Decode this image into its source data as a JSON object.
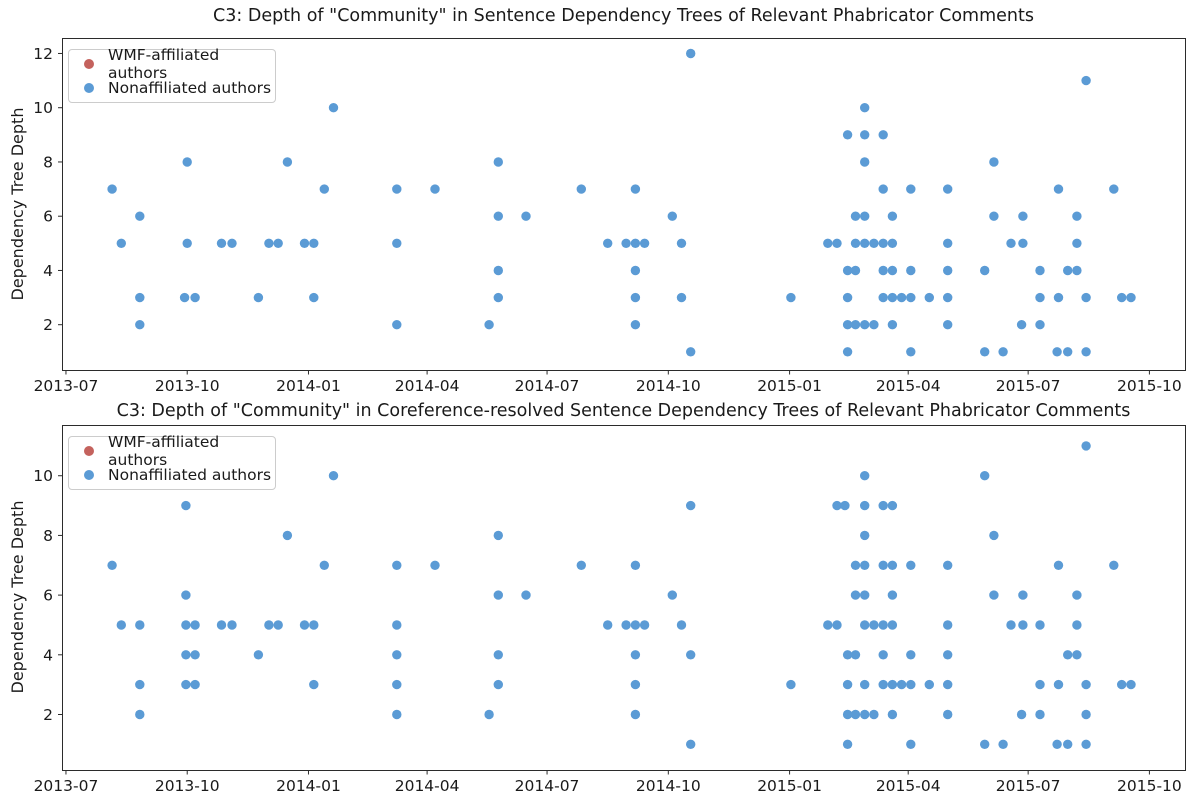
{
  "figure": {
    "background": "#ffffff",
    "text_color": "#1a1a1a",
    "spine_color": "#2b2b2b"
  },
  "legend": {
    "items": [
      {
        "label": "WMF-affiliated authors",
        "color": "#c4625d"
      },
      {
        "label": "Nonaffiliated authors",
        "color": "#5b9bd5"
      }
    ]
  },
  "x_axis": {
    "min_date": "2013-06-28",
    "max_date": "2015-10-28",
    "ticks": [
      {
        "date": "2013-07-01",
        "label": "2013-07"
      },
      {
        "date": "2013-10-01",
        "label": "2013-10"
      },
      {
        "date": "2014-01-01",
        "label": "2014-01"
      },
      {
        "date": "2014-04-01",
        "label": "2014-04"
      },
      {
        "date": "2014-07-01",
        "label": "2014-07"
      },
      {
        "date": "2014-10-01",
        "label": "2014-10"
      },
      {
        "date": "2015-01-01",
        "label": "2015-01"
      },
      {
        "date": "2015-04-01",
        "label": "2015-04"
      },
      {
        "date": "2015-07-01",
        "label": "2015-07"
      },
      {
        "date": "2015-10-01",
        "label": "2015-10"
      }
    ]
  },
  "chart_data": [
    {
      "type": "scatter",
      "title": "C3: Depth of \"Community\" in Sentence Dependency Trees of Relevant Phabricator Comments",
      "xlabel": "",
      "ylabel": "Dependency Tree Depth",
      "ylim": [
        0.33,
        12.57
      ],
      "y_ticks": [
        2,
        4,
        6,
        8,
        10,
        12
      ],
      "grid": false,
      "legend_position": "upper left",
      "series": [
        {
          "name": "WMF-affiliated authors",
          "color": "#c4625d",
          "points": []
        },
        {
          "name": "Nonaffiliated authors",
          "color": "#5b9bd5",
          "points": [
            [
              "2013-08-05",
              7
            ],
            [
              "2013-08-12",
              5
            ],
            [
              "2013-08-26",
              6
            ],
            [
              "2013-08-26",
              3
            ],
            [
              "2013-08-26",
              2
            ],
            [
              "2013-09-29",
              3
            ],
            [
              "2013-10-01",
              8
            ],
            [
              "2013-10-01",
              5
            ],
            [
              "2013-10-07",
              3
            ],
            [
              "2013-10-27",
              5
            ],
            [
              "2013-11-04",
              5
            ],
            [
              "2013-11-24",
              3
            ],
            [
              "2013-12-02",
              5
            ],
            [
              "2013-12-09",
              5
            ],
            [
              "2013-12-16",
              8
            ],
            [
              "2013-12-29",
              5
            ],
            [
              "2014-01-05",
              5
            ],
            [
              "2014-01-05",
              3
            ],
            [
              "2014-01-13",
              7
            ],
            [
              "2014-01-20",
              10
            ],
            [
              "2014-03-09",
              7
            ],
            [
              "2014-03-09",
              5
            ],
            [
              "2014-03-09",
              2
            ],
            [
              "2014-04-07",
              7
            ],
            [
              "2014-05-18",
              2
            ],
            [
              "2014-05-25",
              8
            ],
            [
              "2014-05-25",
              6
            ],
            [
              "2014-05-25",
              4
            ],
            [
              "2014-05-25",
              3
            ],
            [
              "2014-06-15",
              6
            ],
            [
              "2014-07-27",
              7
            ],
            [
              "2014-08-16",
              5
            ],
            [
              "2014-08-30",
              5
            ],
            [
              "2014-09-06",
              7
            ],
            [
              "2014-09-06",
              5
            ],
            [
              "2014-09-06",
              4
            ],
            [
              "2014-09-06",
              3
            ],
            [
              "2014-09-06",
              2
            ],
            [
              "2014-09-13",
              5
            ],
            [
              "2014-10-04",
              6
            ],
            [
              "2014-10-11",
              5
            ],
            [
              "2014-10-11",
              3
            ],
            [
              "2014-10-18",
              12
            ],
            [
              "2014-10-18",
              1
            ],
            [
              "2015-01-02",
              3
            ],
            [
              "2015-01-30",
              5
            ],
            [
              "2015-02-06",
              5
            ],
            [
              "2015-02-14",
              9
            ],
            [
              "2015-02-14",
              4
            ],
            [
              "2015-02-14",
              3
            ],
            [
              "2015-02-14",
              2
            ],
            [
              "2015-02-14",
              1
            ],
            [
              "2015-02-20",
              6
            ],
            [
              "2015-02-20",
              5
            ],
            [
              "2015-02-20",
              4
            ],
            [
              "2015-02-20",
              2
            ],
            [
              "2015-02-27",
              10
            ],
            [
              "2015-02-27",
              9
            ],
            [
              "2015-02-27",
              8
            ],
            [
              "2015-02-27",
              6
            ],
            [
              "2015-02-27",
              5
            ],
            [
              "2015-02-27",
              2
            ],
            [
              "2015-03-06",
              5
            ],
            [
              "2015-03-06",
              2
            ],
            [
              "2015-03-13",
              9
            ],
            [
              "2015-03-13",
              7
            ],
            [
              "2015-03-13",
              5
            ],
            [
              "2015-03-13",
              4
            ],
            [
              "2015-03-13",
              3
            ],
            [
              "2015-03-20",
              6
            ],
            [
              "2015-03-20",
              5
            ],
            [
              "2015-03-20",
              4
            ],
            [
              "2015-03-20",
              3
            ],
            [
              "2015-03-20",
              2
            ],
            [
              "2015-03-27",
              3
            ],
            [
              "2015-04-03",
              7
            ],
            [
              "2015-04-03",
              4
            ],
            [
              "2015-04-03",
              3
            ],
            [
              "2015-04-03",
              1
            ],
            [
              "2015-04-17",
              3
            ],
            [
              "2015-05-01",
              7
            ],
            [
              "2015-05-01",
              5
            ],
            [
              "2015-05-01",
              4
            ],
            [
              "2015-05-01",
              3
            ],
            [
              "2015-05-01",
              2
            ],
            [
              "2015-05-29",
              4
            ],
            [
              "2015-05-29",
              1
            ],
            [
              "2015-06-05",
              8
            ],
            [
              "2015-06-05",
              6
            ],
            [
              "2015-06-12",
              1
            ],
            [
              "2015-06-18",
              5
            ],
            [
              "2015-06-26",
              2
            ],
            [
              "2015-06-27",
              6
            ],
            [
              "2015-06-27",
              5
            ],
            [
              "2015-07-10",
              4
            ],
            [
              "2015-07-10",
              3
            ],
            [
              "2015-07-10",
              2
            ],
            [
              "2015-07-23",
              1
            ],
            [
              "2015-07-24",
              7
            ],
            [
              "2015-07-24",
              3
            ],
            [
              "2015-07-31",
              4
            ],
            [
              "2015-07-31",
              1
            ],
            [
              "2015-08-07",
              6
            ],
            [
              "2015-08-07",
              5
            ],
            [
              "2015-08-07",
              4
            ],
            [
              "2015-08-14",
              11
            ],
            [
              "2015-08-14",
              3
            ],
            [
              "2015-08-14",
              1
            ],
            [
              "2015-09-04",
              7
            ],
            [
              "2015-09-10",
              3
            ],
            [
              "2015-09-17",
              3
            ]
          ]
        }
      ]
    },
    {
      "type": "scatter",
      "title": "C3: Depth of \"Community\" in Coreference-resolved Sentence Dependency Trees of Relevant Phabricator Comments",
      "xlabel": "",
      "ylabel": "Dependency Tree Depth",
      "ylim": [
        0.14,
        11.7
      ],
      "y_ticks": [
        2,
        4,
        6,
        8,
        10
      ],
      "grid": false,
      "legend_position": "upper left",
      "series": [
        {
          "name": "WMF-affiliated authors",
          "color": "#c4625d",
          "points": []
        },
        {
          "name": "Nonaffiliated authors",
          "color": "#5b9bd5",
          "points": [
            [
              "2013-08-05",
              7
            ],
            [
              "2013-08-12",
              5
            ],
            [
              "2013-08-26",
              5
            ],
            [
              "2013-08-26",
              3
            ],
            [
              "2013-08-26",
              2
            ],
            [
              "2013-09-30",
              9
            ],
            [
              "2013-09-30",
              6
            ],
            [
              "2013-09-30",
              5
            ],
            [
              "2013-09-30",
              4
            ],
            [
              "2013-09-30",
              3
            ],
            [
              "2013-10-07",
              5
            ],
            [
              "2013-10-07",
              4
            ],
            [
              "2013-10-07",
              3
            ],
            [
              "2013-10-27",
              5
            ],
            [
              "2013-11-04",
              5
            ],
            [
              "2013-11-24",
              4
            ],
            [
              "2013-12-02",
              5
            ],
            [
              "2013-12-09",
              5
            ],
            [
              "2013-12-16",
              8
            ],
            [
              "2013-12-29",
              5
            ],
            [
              "2014-01-05",
              5
            ],
            [
              "2014-01-05",
              3
            ],
            [
              "2014-01-13",
              7
            ],
            [
              "2014-01-20",
              10
            ],
            [
              "2014-03-09",
              7
            ],
            [
              "2014-03-09",
              5
            ],
            [
              "2014-03-09",
              4
            ],
            [
              "2014-03-09",
              3
            ],
            [
              "2014-03-09",
              2
            ],
            [
              "2014-04-07",
              7
            ],
            [
              "2014-05-18",
              2
            ],
            [
              "2014-05-25",
              8
            ],
            [
              "2014-05-25",
              6
            ],
            [
              "2014-05-25",
              4
            ],
            [
              "2014-05-25",
              3
            ],
            [
              "2014-06-15",
              6
            ],
            [
              "2014-07-27",
              7
            ],
            [
              "2014-08-16",
              5
            ],
            [
              "2014-08-30",
              5
            ],
            [
              "2014-09-06",
              7
            ],
            [
              "2014-09-06",
              5
            ],
            [
              "2014-09-06",
              4
            ],
            [
              "2014-09-06",
              3
            ],
            [
              "2014-09-06",
              2
            ],
            [
              "2014-09-13",
              5
            ],
            [
              "2014-10-04",
              6
            ],
            [
              "2014-10-11",
              5
            ],
            [
              "2014-10-18",
              9
            ],
            [
              "2014-10-18",
              4
            ],
            [
              "2014-10-18",
              1
            ],
            [
              "2015-01-02",
              3
            ],
            [
              "2015-01-30",
              5
            ],
            [
              "2015-02-06",
              9
            ],
            [
              "2015-02-06",
              5
            ],
            [
              "2015-02-12",
              9
            ],
            [
              "2015-02-14",
              4
            ],
            [
              "2015-02-14",
              3
            ],
            [
              "2015-02-14",
              2
            ],
            [
              "2015-02-14",
              1
            ],
            [
              "2015-02-20",
              7
            ],
            [
              "2015-02-20",
              6
            ],
            [
              "2015-02-20",
              4
            ],
            [
              "2015-02-20",
              2
            ],
            [
              "2015-02-27",
              10
            ],
            [
              "2015-02-27",
              9
            ],
            [
              "2015-02-27",
              8
            ],
            [
              "2015-02-27",
              7
            ],
            [
              "2015-02-27",
              6
            ],
            [
              "2015-02-27",
              5
            ],
            [
              "2015-02-27",
              3
            ],
            [
              "2015-02-27",
              2
            ],
            [
              "2015-03-06",
              5
            ],
            [
              "2015-03-06",
              2
            ],
            [
              "2015-03-13",
              9
            ],
            [
              "2015-03-13",
              7
            ],
            [
              "2015-03-13",
              5
            ],
            [
              "2015-03-13",
              4
            ],
            [
              "2015-03-13",
              3
            ],
            [
              "2015-03-20",
              9
            ],
            [
              "2015-03-20",
              7
            ],
            [
              "2015-03-20",
              6
            ],
            [
              "2015-03-20",
              5
            ],
            [
              "2015-03-20",
              3
            ],
            [
              "2015-03-20",
              2
            ],
            [
              "2015-03-27",
              3
            ],
            [
              "2015-04-03",
              7
            ],
            [
              "2015-04-03",
              4
            ],
            [
              "2015-04-03",
              3
            ],
            [
              "2015-04-03",
              1
            ],
            [
              "2015-04-17",
              3
            ],
            [
              "2015-05-01",
              7
            ],
            [
              "2015-05-01",
              5
            ],
            [
              "2015-05-01",
              4
            ],
            [
              "2015-05-01",
              3
            ],
            [
              "2015-05-01",
              2
            ],
            [
              "2015-05-29",
              10
            ],
            [
              "2015-05-29",
              1
            ],
            [
              "2015-06-05",
              8
            ],
            [
              "2015-06-05",
              6
            ],
            [
              "2015-06-12",
              1
            ],
            [
              "2015-06-18",
              5
            ],
            [
              "2015-06-26",
              2
            ],
            [
              "2015-06-27",
              6
            ],
            [
              "2015-06-27",
              5
            ],
            [
              "2015-07-10",
              5
            ],
            [
              "2015-07-10",
              3
            ],
            [
              "2015-07-10",
              2
            ],
            [
              "2015-07-23",
              1
            ],
            [
              "2015-07-24",
              7
            ],
            [
              "2015-07-24",
              3
            ],
            [
              "2015-07-31",
              4
            ],
            [
              "2015-07-31",
              1
            ],
            [
              "2015-08-07",
              6
            ],
            [
              "2015-08-07",
              5
            ],
            [
              "2015-08-07",
              4
            ],
            [
              "2015-08-14",
              11
            ],
            [
              "2015-08-14",
              3
            ],
            [
              "2015-08-14",
              2
            ],
            [
              "2015-08-14",
              1
            ],
            [
              "2015-09-04",
              7
            ],
            [
              "2015-09-10",
              3
            ],
            [
              "2015-09-17",
              3
            ]
          ]
        }
      ]
    }
  ]
}
